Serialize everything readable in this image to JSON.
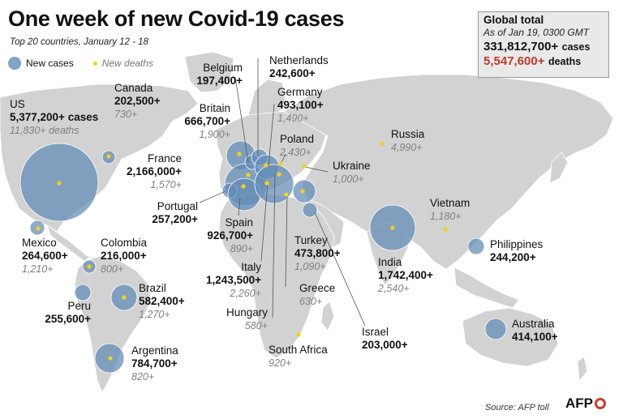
{
  "header": {
    "title": "One week of new Covid-19 cases",
    "subtitle": "Top 20 countries, January 12 - 18"
  },
  "legend": {
    "new_cases": "New cases",
    "new_deaths": "New deaths"
  },
  "global_box": {
    "heading": "Global total",
    "as_of": "As of Jan 19, 0300 GMT",
    "cases_value": "331,812,700+",
    "cases_unit": "cases",
    "deaths_value": "5,547,600+",
    "deaths_unit": "deaths"
  },
  "colors": {
    "bubble": "#5f8bb6",
    "death_dot": "#f3d21a",
    "land": "#d2d2d2",
    "deaths_red": "#c0392b"
  },
  "countries": [
    {
      "name": "US",
      "cases": "5,377,200+ cases",
      "deaths": "11,830+ deaths",
      "cases_value": 5377200
    },
    {
      "name": "Canada",
      "cases": "202,500+",
      "deaths": "730+",
      "cases_value": 202500
    },
    {
      "name": "Belgium",
      "cases": "197,400+",
      "deaths": "",
      "cases_value": 197400
    },
    {
      "name": "Netherlands",
      "cases": "242,600+",
      "deaths": "",
      "cases_value": 242600
    },
    {
      "name": "Germany",
      "cases": "493,100+",
      "deaths": "1,490+",
      "cases_value": 493100
    },
    {
      "name": "Britain",
      "cases": "666,700+",
      "deaths": "1,900+",
      "cases_value": 666700
    },
    {
      "name": "Poland",
      "cases": "",
      "deaths": "2,430+",
      "cases_value": null
    },
    {
      "name": "Russia",
      "cases": "",
      "deaths": "4,990+",
      "cases_value": null
    },
    {
      "name": "France",
      "cases": "2,166,000+",
      "deaths": "1,570+",
      "cases_value": 2166000
    },
    {
      "name": "Ukraine",
      "cases": "",
      "deaths": "1,000+",
      "cases_value": null
    },
    {
      "name": "Portugal",
      "cases": "257,200+",
      "deaths": "",
      "cases_value": 257200
    },
    {
      "name": "Vietnam",
      "cases": "",
      "deaths": "1,180+",
      "cases_value": null
    },
    {
      "name": "Spain",
      "cases": "926,700+",
      "deaths": "890+",
      "cases_value": 926700
    },
    {
      "name": "Mexico",
      "cases": "264,600+",
      "deaths": "1,210+",
      "cases_value": 264600
    },
    {
      "name": "Colombia",
      "cases": "216,000+",
      "deaths": "800+",
      "cases_value": 216000
    },
    {
      "name": "Turkey",
      "cases": "473,800+",
      "deaths": "1,090+",
      "cases_value": 473800
    },
    {
      "name": "Philippines",
      "cases": "244,200+",
      "deaths": "",
      "cases_value": 244200
    },
    {
      "name": "India",
      "cases": "1,742,400+",
      "deaths": "2,540+",
      "cases_value": 1742400
    },
    {
      "name": "Italy",
      "cases": "1,243,500+",
      "deaths": "2,260+",
      "cases_value": 1243500
    },
    {
      "name": "Brazil",
      "cases": "582,400+",
      "deaths": "1,270+",
      "cases_value": 582400
    },
    {
      "name": "Peru",
      "cases": "255,600+",
      "deaths": "",
      "cases_value": 255600
    },
    {
      "name": "Greece",
      "cases": "",
      "deaths": "630+",
      "cases_value": null
    },
    {
      "name": "Hungary",
      "cases": "",
      "deaths": "580+",
      "cases_value": null
    },
    {
      "name": "Israel",
      "cases": "203,000+",
      "deaths": "",
      "cases_value": 203000
    },
    {
      "name": "Australia",
      "cases": "414,100+",
      "deaths": "",
      "cases_value": 414100
    },
    {
      "name": "Argentina",
      "cases": "784,700+",
      "deaths": "820+",
      "cases_value": 784700
    },
    {
      "name": "South Africa",
      "cases": "",
      "deaths": "920+",
      "cases_value": null
    }
  ],
  "footer": {
    "source": "Source: AFP toll",
    "logo": "AFP"
  }
}
